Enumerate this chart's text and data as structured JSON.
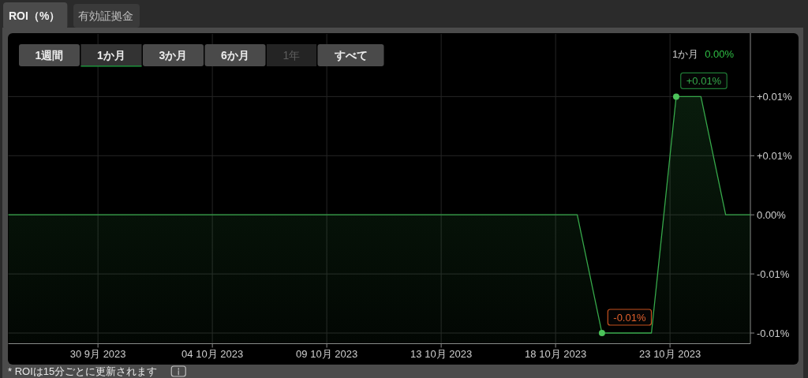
{
  "chart_data": {
    "type": "area",
    "title": "ROI（%）",
    "x": [
      "2023-09-26T10:00",
      "2023-09-27T10:00",
      "2023-09-28T10:00",
      "2023-09-29T10:00",
      "2023-09-30T10:00",
      "2023-10-01T10:00",
      "2023-10-02T10:00",
      "2023-10-03T10:00",
      "2023-10-04T10:00",
      "2023-10-05T10:00",
      "2023-10-06T10:00",
      "2023-10-07T10:00",
      "2023-10-08T10:00",
      "2023-10-09T10:00",
      "2023-10-10T10:00",
      "2023-10-11T10:00",
      "2023-10-12T10:00",
      "2023-10-13T10:00",
      "2023-10-14T10:00",
      "2023-10-15T10:00",
      "2023-10-16T10:00",
      "2023-10-17T10:00",
      "2023-10-18T10:00",
      "2023-10-19T10:00",
      "2023-10-20T10:00",
      "2023-10-21T10:00",
      "2023-10-22T10:00",
      "2023-10-23T10:00",
      "2023-10-24T10:00",
      "2023-10-25T10:00",
      "2023-10-26T10:00"
    ],
    "series": [
      {
        "color": "#36a84a",
        "values": [
          0,
          0,
          0,
          0,
          0,
          0,
          0,
          0,
          0,
          0,
          0,
          0,
          0,
          0,
          0,
          0,
          0,
          0,
          0,
          0,
          0,
          0,
          0,
          0,
          -0.01,
          -0.01,
          -0.01,
          0.01,
          0.01,
          0,
          0
        ]
      },
      {
        "type": "scatter",
        "marker": "circle",
        "color": "#4cc35a",
        "x": [
          "2023-10-20T10:00",
          "2023-10-23T10:00"
        ],
        "values": [
          -0.01,
          0.01
        ]
      }
    ],
    "xlim": [
      "2023-09-26T10:00",
      "2023-10-26T10:00"
    ],
    "xticks": [
      {
        "value": "2023-09-30T01:00",
        "label": "30 9月 2023"
      },
      {
        "value": "2023-10-04T16:00",
        "label": "04 10月 2023"
      },
      {
        "value": "2023-10-09T07:00",
        "label": "09 10月 2023"
      },
      {
        "value": "2023-10-13T22:00",
        "label": "13 10月 2023"
      },
      {
        "value": "2023-10-18T13:00",
        "label": "18 10月 2023"
      },
      {
        "value": "2023-10-23T04:00",
        "label": "23 10月 2023"
      }
    ],
    "ylim": [
      -0.0109,
      0.0153
    ],
    "yticks": [
      {
        "value": 0.01,
        "label": "+0.01%"
      },
      {
        "value": 0.005,
        "label": "+0.01%"
      },
      {
        "value": 0,
        "label": "0.00%"
      },
      {
        "value": -0.005,
        "label": "-0.01%"
      },
      {
        "value": -0.01,
        "label": "-0.01%"
      }
    ],
    "grid": true,
    "annotations": [
      "有効証拠金",
      "1週間",
      "1か月",
      "3か月",
      "6か月",
      "1年",
      "すべて",
      "1か月",
      "0.00%",
      {
        "text": "-0.01%",
        "x": "2023-10-20T10:00",
        "y": -0.01
      },
      {
        "text": "+0.01%",
        "x": "2023-10-23T10:00",
        "y": 0.01
      },
      "* ROIは15分ごとに更新されます"
    ]
  }
}
